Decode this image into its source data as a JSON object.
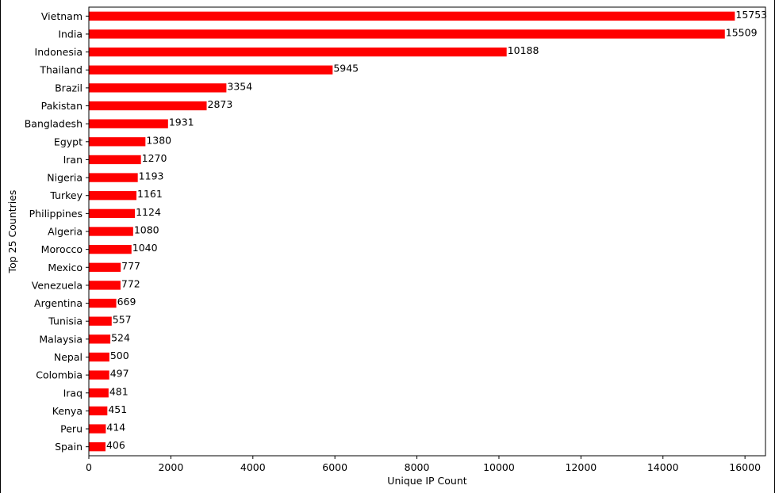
{
  "chart_data": {
    "type": "bar",
    "orientation": "horizontal",
    "title": "",
    "xlabel": "Unique IP Count",
    "ylabel": "Top 25 Countries",
    "xlim": [
      0,
      16500
    ],
    "xticks": [
      0,
      2000,
      4000,
      6000,
      8000,
      10000,
      12000,
      14000,
      16000
    ],
    "grid": false,
    "bar_color": "#ff0000",
    "data_labels": true,
    "categories": [
      "Vietnam",
      "India",
      "Indonesia",
      "Thailand",
      "Brazil",
      "Pakistan",
      "Bangladesh",
      "Egypt",
      "Iran",
      "Nigeria",
      "Turkey",
      "Philippines",
      "Algeria",
      "Morocco",
      "Mexico",
      "Venezuela",
      "Argentina",
      "Tunisia",
      "Malaysia",
      "Nepal",
      "Colombia",
      "Iraq",
      "Kenya",
      "Peru",
      "Spain"
    ],
    "values": [
      15753,
      15509,
      10188,
      5945,
      3354,
      2873,
      1931,
      1380,
      1270,
      1193,
      1161,
      1124,
      1080,
      1040,
      777,
      772,
      669,
      557,
      524,
      500,
      497,
      481,
      451,
      414,
      406
    ]
  }
}
